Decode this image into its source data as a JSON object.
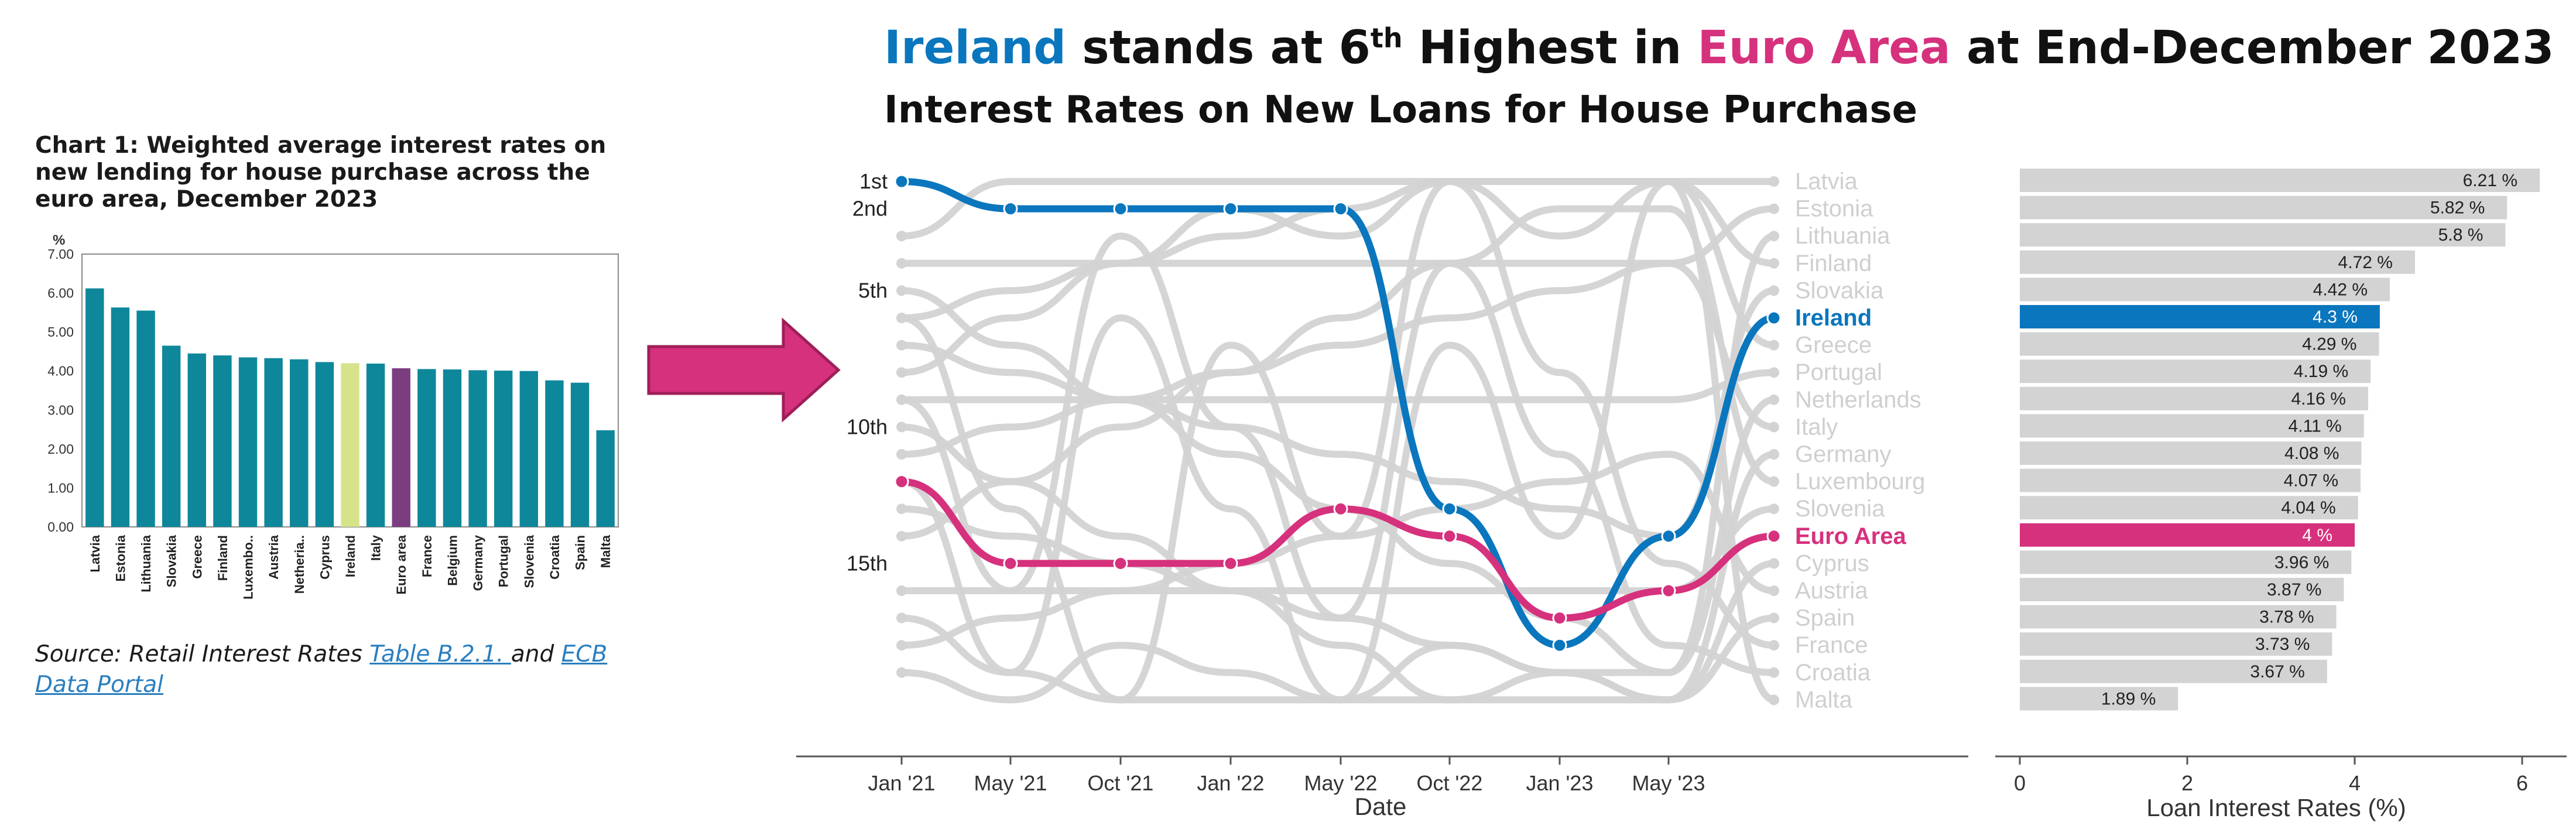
{
  "main_title": {
    "part1": "Ireland",
    "part2": " stands at 6",
    "part2_sup": "th",
    "part3": " Highest in ",
    "part4": "Euro Area",
    "part5": " at End-December 2023"
  },
  "sub_title": "Interest Rates on New Loans for House Purchase",
  "left_panel": {
    "title": "Chart 1: Weighted average interest rates on new lending for house purchase across the euro area, December 2023",
    "source_prefix": "Source: Retail Interest Rates ",
    "source_link1": "Table B.2.1. ",
    "source_mid": "and ",
    "source_link2": "ECB Data Portal"
  },
  "colors": {
    "ireland": "#0a76be",
    "euro_area": "#d6317d",
    "bar_teal": "#0e879b",
    "ireland_bar_left": "#d7e38a",
    "euro_bar_left": "#7b3d80",
    "grey": "#d3d3d3",
    "arrow": "#d6317d"
  },
  "chart_data": [
    {
      "type": "bar",
      "y_unit_label": "%",
      "ylim": [
        0,
        7
      ],
      "yticks": [
        "0.00",
        "1.00",
        "2.00",
        "3.00",
        "4.00",
        "5.00",
        "6.00",
        "7.00"
      ],
      "categories": [
        "Latvia",
        "Estonia",
        "Lithuania",
        "Slovakia",
        "Greece",
        "Finland",
        "Luxembo..",
        "Austria",
        "Netheria..",
        "Cyprus",
        "Ireland",
        "Italy",
        "Euro area",
        "France",
        "Belgium",
        "Germany",
        "Portugal",
        "Slovenia",
        "Croatia",
        "Spain",
        "Malta"
      ],
      "values": [
        6.12,
        5.63,
        5.55,
        4.65,
        4.45,
        4.4,
        4.35,
        4.33,
        4.3,
        4.23,
        4.2,
        4.19,
        4.07,
        4.05,
        4.04,
        4.02,
        4.01,
        4.0,
        3.76,
        3.7,
        2.48
      ],
      "highlight": {
        "Ireland": "ireland_bar_left",
        "Euro area": "euro_bar_left"
      },
      "grid": false
    },
    {
      "type": "line",
      "subtype": "bump",
      "xlabel": "Date",
      "x_ticks": [
        "Jan '21",
        "May '21",
        "Oct '21",
        "Jan '22",
        "May '22",
        "Oct '22",
        "Jan '23",
        "May '23"
      ],
      "rank_labels": [
        {
          "rank": 1,
          "label": "1st"
        },
        {
          "rank": 2,
          "label": "2nd"
        },
        {
          "rank": 5,
          "label": "5th"
        },
        {
          "rank": 10,
          "label": "10th"
        },
        {
          "rank": 15,
          "label": "15th"
        }
      ],
      "ranks_range": [
        1,
        20
      ],
      "end_labels": [
        "Latvia",
        "Estonia",
        "Lithuania",
        "Finland",
        "Slovakia",
        "Ireland",
        "Greece",
        "Portugal",
        "Netherlands",
        "Italy",
        "Germany",
        "Luxembourg",
        "Slovenia",
        "Euro Area",
        "Cyprus",
        "Austria",
        "Spain",
        "France",
        "Croatia",
        "Malta"
      ],
      "series": [
        {
          "name": "Ireland",
          "color_key": "ireland",
          "ranks": [
            1,
            2,
            2,
            2,
            2,
            13,
            18,
            14,
            6
          ]
        },
        {
          "name": "Euro Area",
          "color_key": "euro_area",
          "ranks": [
            12,
            15,
            15,
            15,
            13,
            14,
            17,
            16,
            14
          ]
        }
      ],
      "grey_start_ranks": [
        3,
        4,
        5,
        6,
        7,
        8,
        9,
        10,
        11,
        13,
        14,
        16,
        17,
        18,
        19
      ]
    },
    {
      "type": "bar",
      "orientation": "horizontal",
      "xlabel": "Loan Interest Rates (%)",
      "xlim": [
        0,
        6.5
      ],
      "xticks": [
        0,
        2,
        4,
        6
      ],
      "categories": [
        "Latvia",
        "Estonia",
        "Lithuania",
        "Finland",
        "Slovakia",
        "Ireland",
        "Greece",
        "Portugal",
        "Netherlands",
        "Italy",
        "Germany",
        "Luxembourg",
        "Slovenia",
        "Euro Area",
        "Cyprus",
        "Austria",
        "Spain",
        "France",
        "Croatia",
        "Malta"
      ],
      "values": [
        6.21,
        5.82,
        5.8,
        4.72,
        4.42,
        4.3,
        4.29,
        4.19,
        4.16,
        4.11,
        4.08,
        4.07,
        4.04,
        4.0,
        3.96,
        3.87,
        3.78,
        3.73,
        3.67,
        1.89
      ],
      "value_labels": [
        "6.21 %",
        "5.82 %",
        "5.8 %",
        "4.72 %",
        "4.42 %",
        "4.3 %",
        "4.29 %",
        "4.19 %",
        "4.16 %",
        "4.11 %",
        "4.08 %",
        "4.07 %",
        "4.04 %",
        "4 %",
        "3.96 %",
        "3.87 %",
        "3.78 %",
        "3.73 %",
        "3.67 %",
        "1.89 %"
      ],
      "highlight": {
        "Ireland": "ireland",
        "Euro Area": "euro_area"
      }
    }
  ]
}
